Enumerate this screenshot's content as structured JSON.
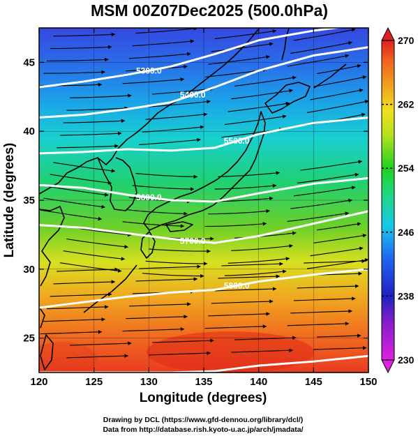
{
  "chart_data": {
    "type": "heatmap",
    "title": "MSM 00Z07Dec2025 (500.0hPa)",
    "xlabel": "Longitude (degrees)",
    "ylabel": "Latitude  (degrees)",
    "xlim": [
      120,
      150
    ],
    "ylim": [
      22.5,
      47.5
    ],
    "xticks": [
      "120",
      "125",
      "130",
      "135",
      "140",
      "145",
      "150"
    ],
    "yticks": [
      "25",
      "30",
      "35",
      "40",
      "45"
    ],
    "colorbar": {
      "min": 230,
      "max": 270,
      "ticks": [
        "230",
        "238",
        "246",
        "254",
        "262",
        "270"
      ],
      "colors": [
        "#e020e0",
        "#a020d0",
        "#2020c0",
        "#2060f0",
        "#20c0e0",
        "#20d080",
        "#20d020",
        "#a0e020",
        "#f0e020",
        "#f0a020",
        "#f06020",
        "#e02020"
      ]
    },
    "contours": [
      {
        "label": "5300.0",
        "lat": [
          43.2,
          43.6,
          44.1,
          44.7,
          45.6,
          46.6,
          47.3,
          47.8
        ]
      },
      {
        "label": "5400.0",
        "lat": [
          41.0,
          41.2,
          41.6,
          42.1,
          43.2,
          44.4,
          45.5,
          46.1
        ]
      },
      {
        "label": "5500.0",
        "lat": [
          38.4,
          38.5,
          38.7,
          38.6,
          38.8,
          39.8,
          40.6,
          41.0
        ]
      },
      {
        "label": "5600.0",
        "lat": [
          36.1,
          35.9,
          35.4,
          35.0,
          34.9,
          35.5,
          36.2,
          36.6
        ]
      },
      {
        "label": "5700.0",
        "lat": [
          33.2,
          33.0,
          32.6,
          32.2,
          31.9,
          32.4,
          33.3,
          34.2
        ]
      },
      {
        "label": "5800.0",
        "lat": [
          27.2,
          27.6,
          28.0,
          28.3,
          28.5,
          29.1,
          29.6,
          30.0
        ]
      },
      {
        "label": "",
        "lat": [
          22.5,
          22.5,
          22.5,
          22.5,
          22.6,
          23.0,
          23.3,
          23.7
        ]
      }
    ],
    "contour_lon": [
      120,
      124,
      128,
      132,
      136,
      140,
      145,
      150
    ]
  },
  "credits": {
    "line1": "Drawing by DCL (https://www.gfd-dennou.org/library/dcl/)",
    "line2": "Data from http://database.rish.kyoto-u.ac.jp/arch/jmadata/"
  }
}
